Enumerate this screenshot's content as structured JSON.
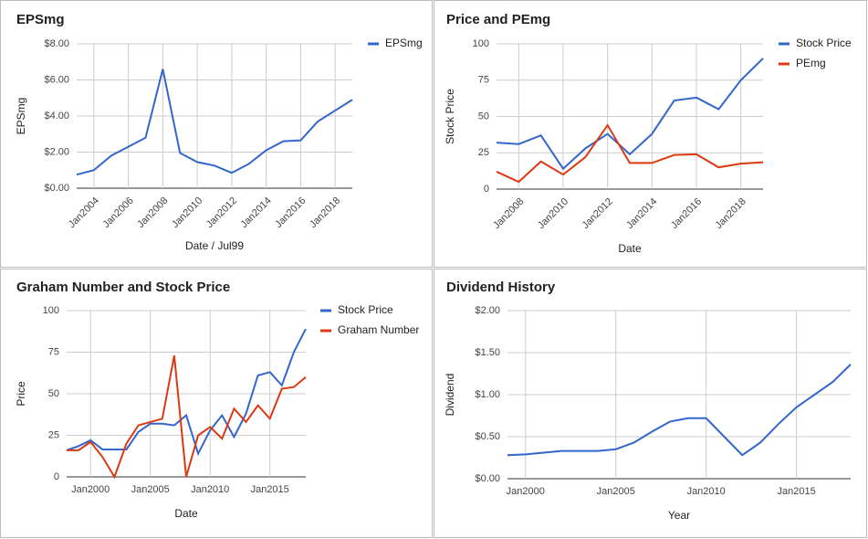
{
  "chart_data": [
    {
      "type": "line",
      "title": "EPSmg",
      "xlabel": "Date / Jul99",
      "ylabel": "EPSmg",
      "legend": "right",
      "categories": [
        null,
        "Jan2004",
        null,
        "Jan2006",
        null,
        "Jan2008",
        null,
        "Jan2010",
        null,
        "Jan2012",
        null,
        "Jan2014",
        null,
        "Jan2016",
        null,
        "Jan2018",
        null
      ],
      "series": [
        {
          "name": "EPSmg",
          "color": "#3366cc",
          "values": [
            0.75,
            1.0,
            1.8,
            2.3,
            2.8,
            6.6,
            1.95,
            1.45,
            1.25,
            0.85,
            1.35,
            2.1,
            2.6,
            2.65,
            3.7,
            4.3,
            4.9
          ]
        }
      ],
      "ylim": [
        0,
        8
      ],
      "yticks": [
        {
          "value": 0,
          "label": "$0.00"
        },
        {
          "value": 2,
          "label": "$2.00"
        },
        {
          "value": 4,
          "label": "$4.00"
        },
        {
          "value": 6,
          "label": "$6.00"
        },
        {
          "value": 8,
          "label": "$8.00"
        }
      ],
      "grid": true
    },
    {
      "type": "line",
      "title": "Price and PEmg",
      "xlabel": "Date",
      "ylabel": "Stock Price",
      "legend": "right",
      "categories": [
        null,
        "Jan2008",
        null,
        "Jan2010",
        null,
        "Jan2012",
        null,
        "Jan2014",
        null,
        "Jan2016",
        null,
        "Jan2018",
        null
      ],
      "series": [
        {
          "name": "Stock Price",
          "color": "#3366cc",
          "values": [
            32,
            31,
            37,
            14,
            28,
            38,
            24,
            38,
            61,
            63,
            55,
            75,
            90
          ]
        },
        {
          "name": "PEmg",
          "color": "#dc3912",
          "values": [
            12,
            5,
            19,
            10,
            22,
            44,
            18,
            18,
            23.5,
            24,
            15,
            17.5,
            18.5
          ]
        }
      ],
      "ylim": [
        0,
        100
      ],
      "yticks": [
        0,
        25,
        50,
        75,
        100
      ],
      "grid": true
    },
    {
      "type": "line",
      "title": "Graham Number and Stock Price",
      "xlabel": "Date",
      "ylabel": "Price",
      "legend": "right",
      "categories": [
        null,
        null,
        "Jan2000",
        null,
        null,
        null,
        null,
        "Jan2005",
        null,
        null,
        null,
        null,
        "Jan2010",
        null,
        null,
        null,
        null,
        "Jan2015",
        null,
        null,
        null
      ],
      "series": [
        {
          "name": "Stock Price",
          "color": "#3366cc",
          "values": [
            16,
            18.5,
            22,
            16.5,
            16.5,
            16.5,
            27,
            32,
            32,
            31,
            37,
            14,
            28,
            37,
            24,
            38,
            61,
            63,
            55,
            75,
            89
          ]
        },
        {
          "name": "Graham Number",
          "color": "#dc3912",
          "values": [
            16,
            16,
            21,
            12,
            0,
            20,
            31,
            33,
            35,
            73,
            0,
            25,
            30,
            23,
            41,
            33,
            43,
            35,
            53,
            54,
            60
          ]
        }
      ],
      "ylim": [
        0,
        100
      ],
      "yticks": [
        0,
        25,
        50,
        75,
        100
      ],
      "grid": true
    },
    {
      "type": "line",
      "title": "Dividend History",
      "xlabel": "Year",
      "ylabel": "Dividend",
      "categories": [
        null,
        "Jan2000",
        null,
        null,
        null,
        null,
        "Jan2005",
        null,
        null,
        null,
        null,
        "Jan2010",
        null,
        null,
        null,
        null,
        "Jan2015",
        null,
        null,
        null
      ],
      "series": [
        {
          "color": "#3366cc",
          "values": [
            0.28,
            0.29,
            0.31,
            0.33,
            0.33,
            0.33,
            0.35,
            0.43,
            0.56,
            0.68,
            0.72,
            0.72,
            0.5,
            0.28,
            0.43,
            0.65,
            0.85,
            1.0,
            1.15,
            1.36
          ]
        }
      ],
      "ylim": [
        0,
        2
      ],
      "yticks": [
        {
          "value": 0,
          "label": "$0.00"
        },
        {
          "value": 0.5,
          "label": "$0.50"
        },
        {
          "value": 1,
          "label": "$1.00"
        },
        {
          "value": 1.5,
          "label": "$1.50"
        },
        {
          "value": 2,
          "label": "$2.00"
        }
      ],
      "grid": true
    }
  ]
}
